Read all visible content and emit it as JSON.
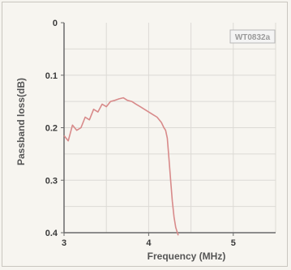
{
  "chart_data": {
    "type": "line",
    "title": "",
    "xlabel": "Frequency (MHz)",
    "ylabel": "Passband loss(dB)",
    "xlim": [
      3,
      5.5
    ],
    "ylim": [
      0,
      0.4
    ],
    "y_inverted": true,
    "x_ticks": [
      3,
      4,
      5
    ],
    "x_tick_labels": [
      "3",
      "4",
      "5"
    ],
    "y_ticks": [
      0,
      0.1,
      0.2,
      0.3,
      0.4
    ],
    "y_tick_labels": [
      "0",
      "0.1",
      "0.2",
      "0.3",
      "0.4"
    ],
    "grid": true,
    "badge": "WT0832a",
    "colors": {
      "line": "#d88a8a",
      "grid": "#dcdad5",
      "axis": "#6a6a6a",
      "badge_border": "#b8b8b8"
    },
    "series": [
      {
        "x": [
          3.0,
          3.05,
          3.1,
          3.15,
          3.2,
          3.25,
          3.3,
          3.35,
          3.4,
          3.45,
          3.5,
          3.55,
          3.6,
          3.65,
          3.7,
          3.75,
          3.8,
          3.85,
          3.9,
          3.95,
          4.0,
          4.05,
          4.1,
          4.15,
          4.18,
          4.2,
          4.22,
          4.24,
          4.26,
          4.28,
          4.3,
          4.32,
          4.35
        ],
        "y": [
          0.215,
          0.225,
          0.195,
          0.205,
          0.2,
          0.18,
          0.185,
          0.165,
          0.17,
          0.155,
          0.16,
          0.15,
          0.148,
          0.145,
          0.143,
          0.148,
          0.15,
          0.155,
          0.16,
          0.165,
          0.17,
          0.175,
          0.18,
          0.19,
          0.2,
          0.205,
          0.22,
          0.26,
          0.3,
          0.34,
          0.37,
          0.39,
          0.405
        ]
      }
    ]
  }
}
